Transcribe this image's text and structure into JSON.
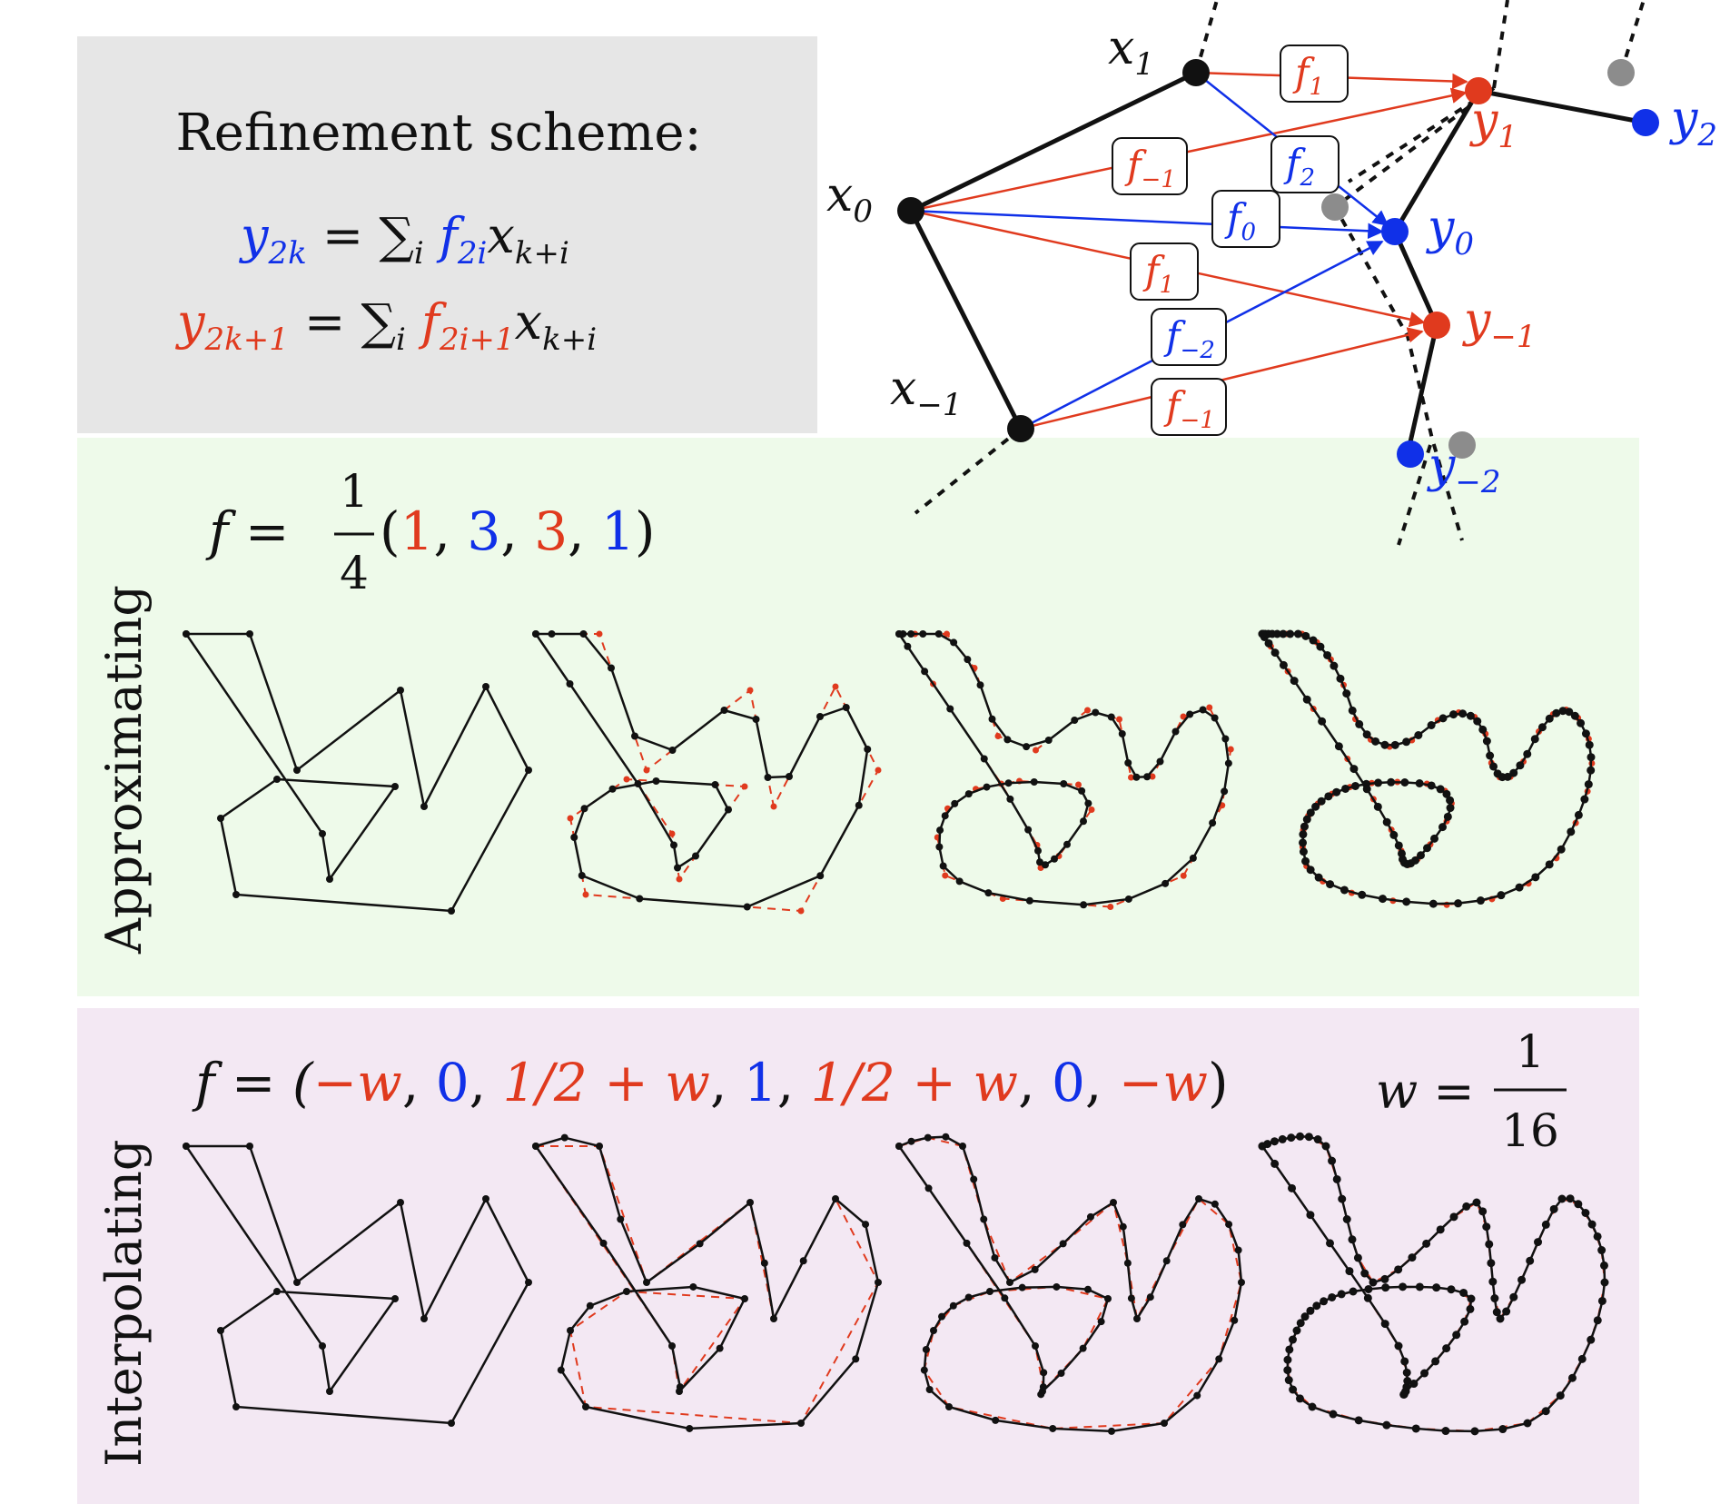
{
  "colors": {
    "red": "#e03a1e",
    "blue": "#1030e8",
    "black": "#111111",
    "gray": "#8c8c8c",
    "panel_gray": "#e6e6e6",
    "panel_green": "#eefaea",
    "panel_purple": "#f3e8f3"
  },
  "scheme": {
    "title": "Refinement scheme:",
    "even_lhs": "y",
    "even_lhs_sub": "2k",
    "even_eq": " = ∑",
    "even_idx": "i",
    "even_f": " f",
    "even_f_sub": "2i",
    "even_x": "x",
    "even_x_sub": "k+i",
    "odd_lhs": "y",
    "odd_lhs_sub": "2k+1",
    "odd_eq": " = ∑",
    "odd_idx": "i",
    "odd_f": " f",
    "odd_f_sub": "2i+1",
    "odd_x": "x",
    "odd_x_sub": "k+i"
  },
  "stencil": {
    "x_labels": [
      {
        "base": "x",
        "sub": "1"
      },
      {
        "base": "x",
        "sub": "0"
      },
      {
        "base": "x",
        "sub": "−1"
      }
    ],
    "y_labels": [
      {
        "base": "y",
        "sub": "2"
      },
      {
        "base": "y",
        "sub": "1"
      },
      {
        "base": "y",
        "sub": "0"
      },
      {
        "base": "y",
        "sub": "−1"
      },
      {
        "base": "y",
        "sub": "−2"
      }
    ],
    "coef_boxes": [
      {
        "base": "f",
        "sub": "1"
      },
      {
        "base": "f",
        "sub": "2"
      },
      {
        "base": "f",
        "sub": "−1"
      },
      {
        "base": "f",
        "sub": "0"
      },
      {
        "base": "f",
        "sub": "1"
      },
      {
        "base": "f",
        "sub": "−2"
      },
      {
        "base": "f",
        "sub": "−1"
      }
    ]
  },
  "approximating": {
    "side_label": "Approximating",
    "f_prefix": "f = ",
    "frac_num": "1",
    "frac_den": "4",
    "open": "(",
    "c1": "1",
    "c2": "3",
    "c3": "3",
    "c4": "1",
    "comma": ", ",
    "close": ")"
  },
  "interpolating": {
    "side_label": "Interpolating",
    "f_prefix": "f = (",
    "t1": "−w",
    "t2": "0",
    "t3": "1/2 + w",
    "t4": "1",
    "t5": "1/2 + w",
    "t6": "0",
    "t7": "−w",
    "comma": ", ",
    "close": ")",
    "w_prefix": "w = ",
    "w_num": "1",
    "w_den": "16"
  }
}
